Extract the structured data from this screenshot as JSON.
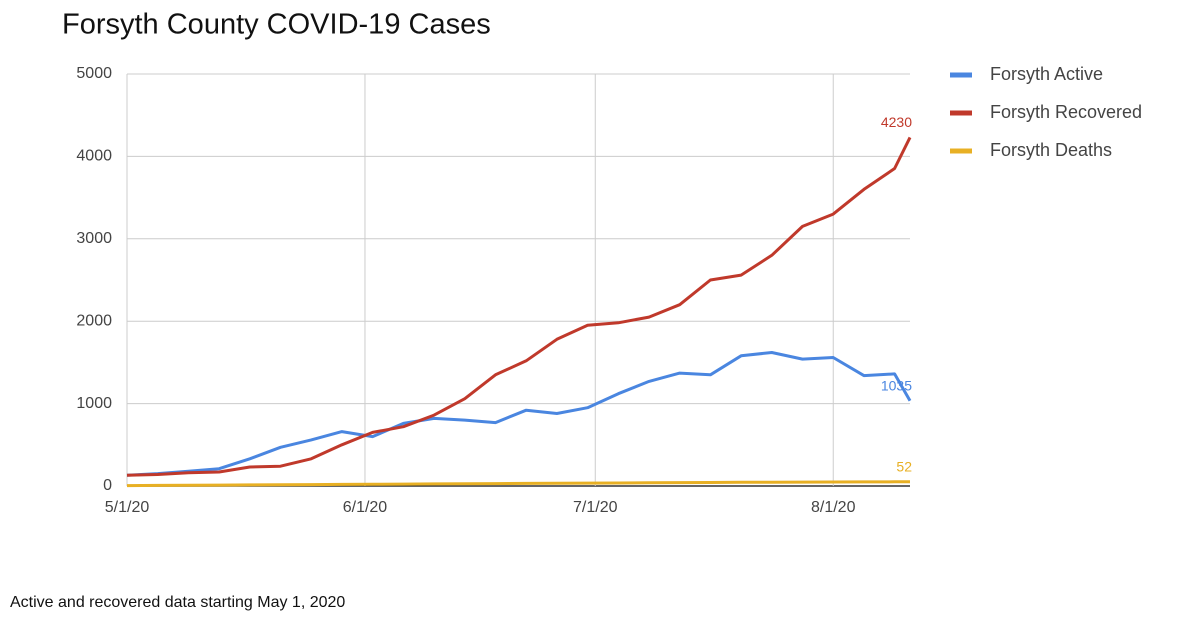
{
  "chart_data": {
    "type": "line",
    "title": "Forsyth County COVID-19 Cases",
    "footnote": "Active and recovered data starting May 1, 2020",
    "x": [
      "5/1/20",
      "5/5/20",
      "5/9/20",
      "5/13/20",
      "5/17/20",
      "5/21/20",
      "5/25/20",
      "5/29/20",
      "6/2/20",
      "6/6/20",
      "6/10/20",
      "6/14/20",
      "6/18/20",
      "6/22/20",
      "6/26/20",
      "6/30/20",
      "7/4/20",
      "7/8/20",
      "7/12/20",
      "7/16/20",
      "7/20/20",
      "7/24/20",
      "7/28/20",
      "8/1/20",
      "8/5/20",
      "8/9/20",
      "8/11/20"
    ],
    "series": [
      {
        "name": "Forsyth Active",
        "color": "#4a86e0",
        "values": [
          130,
          150,
          180,
          210,
          330,
          470,
          560,
          660,
          600,
          760,
          820,
          800,
          770,
          920,
          880,
          950,
          1120,
          1270,
          1370,
          1350,
          1580,
          1620,
          1540,
          1560,
          1340,
          1360,
          1035
        ]
      },
      {
        "name": "Forsyth Recovered",
        "color": "#c0392b",
        "values": [
          130,
          140,
          160,
          170,
          230,
          240,
          330,
          500,
          650,
          720,
          860,
          1060,
          1350,
          1520,
          1780,
          1950,
          1980,
          2050,
          2200,
          2500,
          2560,
          2800,
          3150,
          3300,
          3600,
          3853,
          4230
        ]
      },
      {
        "name": "Forsyth Deaths",
        "color": "#e8b024",
        "values": [
          5,
          7,
          9,
          11,
          13,
          15,
          17,
          19,
          21,
          23,
          25,
          27,
          29,
          31,
          33,
          35,
          37,
          39,
          41,
          43,
          45,
          46,
          47,
          48,
          50,
          51,
          52
        ]
      }
    ],
    "xlim": [
      "5/1/20",
      "8/11/20"
    ],
    "xticks": [
      "5/1/20",
      "6/1/20",
      "7/1/20",
      "8/1/20"
    ],
    "ylim": [
      0,
      5000
    ],
    "yticks": [
      0,
      1000,
      2000,
      3000,
      4000,
      5000
    ],
    "grid": true,
    "legend": "right"
  }
}
